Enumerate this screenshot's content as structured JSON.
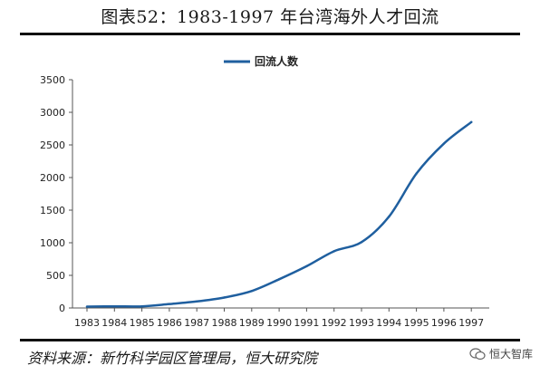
{
  "header": {
    "title": "图表52：1983-1997 年台湾海外人才回流"
  },
  "footer": {
    "source": "资料来源：新竹科学园区管理局，恒大研究院",
    "watermark_text": "恒大智库"
  },
  "chart_data": {
    "type": "line",
    "title": "",
    "xlabel": "",
    "ylabel": "",
    "categories": [
      "1983",
      "1984",
      "1985",
      "1986",
      "1987",
      "1988",
      "1989",
      "1990",
      "1991",
      "1992",
      "1993",
      "1994",
      "1995",
      "1996",
      "1997"
    ],
    "series": [
      {
        "name": "回流人数",
        "color": "#1f5f9f",
        "values": [
          20,
          25,
          25,
          60,
          100,
          160,
          260,
          440,
          640,
          870,
          1010,
          1400,
          2060,
          2520,
          2850
        ]
      }
    ],
    "ylim": [
      0,
      3500
    ],
    "yticks": [
      0,
      500,
      1000,
      1500,
      2000,
      2500,
      3000,
      3500
    ],
    "grid": false,
    "legend_position": "top-center"
  }
}
